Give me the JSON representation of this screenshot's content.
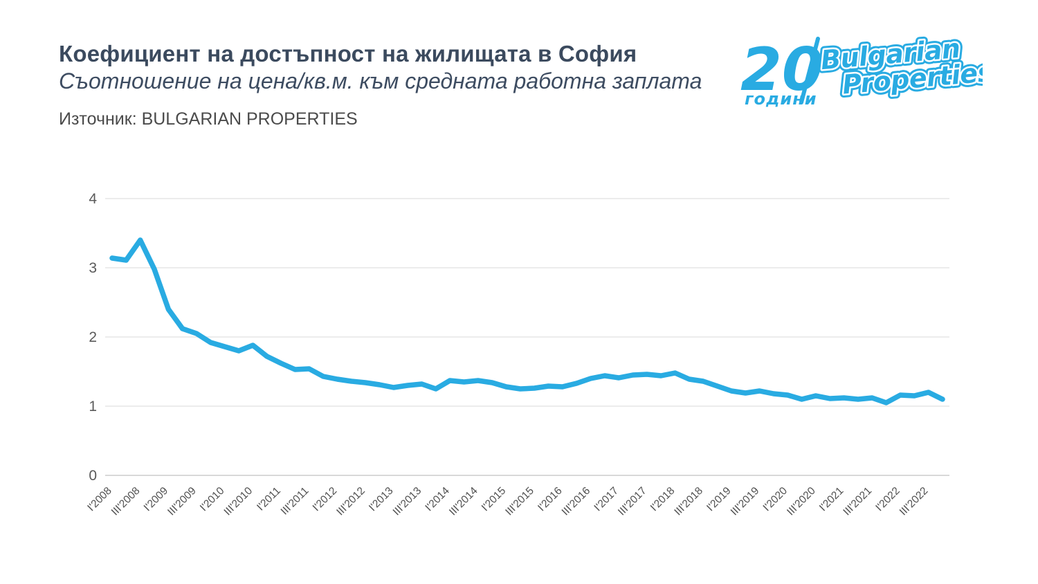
{
  "header": {
    "title": "Коефициент на достъпност на жилищата в София",
    "subtitle": "Съотношение на цена/кв.м. към средната работна заплата",
    "source": "Източник: BULGARIAN PROPERTIES"
  },
  "logo": {
    "number": "20",
    "years_label": "години",
    "brand_line1": "Bulgarian",
    "brand_line2": "Properties"
  },
  "colors": {
    "brand_blue": "#29abe2",
    "title_navy": "#3b4a5e",
    "axis_gray": "#5a5a5a",
    "grid_gray": "#e6e6e6"
  },
  "chart_data": {
    "type": "line",
    "title": "Коефициент на достъпност на жилищата в София",
    "subtitle": "Съотношение на цена/кв.м. към средната работна заплата",
    "source": "Източник: BULGARIAN PROPERTIES",
    "line_color": "#29abe2",
    "grid": true,
    "legend": false,
    "ylim": [
      0,
      4
    ],
    "y_ticks": [
      0,
      1,
      2,
      3,
      4
    ],
    "x_tick_labels": [
      "I'2008",
      "III'2008",
      "I'2009",
      "III'2009",
      "I'2010",
      "III'2010",
      "I'2011",
      "III'2011",
      "I'2012",
      "III'2012",
      "I'2013",
      "III'2013",
      "I'2014",
      "III'2014",
      "I'2015",
      "III'2015",
      "I'2016",
      "III'2016",
      "I'2017",
      "III'2017",
      "I'2018",
      "III'2018",
      "I'2019",
      "III'2019",
      "I'2020",
      "III'2020",
      "I'2021",
      "III'2021",
      "I'2022",
      "III'2022"
    ],
    "x": [
      "I'2008",
      "II'2008",
      "III'2008",
      "IV'2008",
      "I'2009",
      "II'2009",
      "III'2009",
      "IV'2009",
      "I'2010",
      "II'2010",
      "III'2010",
      "IV'2010",
      "I'2011",
      "II'2011",
      "III'2011",
      "IV'2011",
      "I'2012",
      "II'2012",
      "III'2012",
      "IV'2012",
      "I'2013",
      "II'2013",
      "III'2013",
      "IV'2013",
      "I'2014",
      "II'2014",
      "III'2014",
      "IV'2014",
      "I'2015",
      "II'2015",
      "III'2015",
      "IV'2015",
      "I'2016",
      "II'2016",
      "III'2016",
      "IV'2016",
      "I'2017",
      "II'2017",
      "III'2017",
      "IV'2017",
      "I'2018",
      "II'2018",
      "III'2018",
      "IV'2018",
      "I'2019",
      "II'2019",
      "III'2019",
      "IV'2019",
      "I'2020",
      "II'2020",
      "III'2020",
      "IV'2020",
      "I'2021",
      "II'2021",
      "III'2021",
      "IV'2021",
      "I'2022",
      "II'2022",
      "III'2022",
      "IV'2022"
    ],
    "values": [
      3.14,
      3.11,
      3.4,
      2.98,
      2.4,
      2.12,
      2.05,
      1.92,
      1.86,
      1.8,
      1.88,
      1.72,
      1.62,
      1.53,
      1.54,
      1.43,
      1.39,
      1.36,
      1.34,
      1.31,
      1.27,
      1.3,
      1.32,
      1.25,
      1.37,
      1.35,
      1.37,
      1.34,
      1.28,
      1.25,
      1.26,
      1.29,
      1.28,
      1.33,
      1.4,
      1.44,
      1.41,
      1.45,
      1.46,
      1.44,
      1.48,
      1.39,
      1.36,
      1.29,
      1.22,
      1.19,
      1.22,
      1.18,
      1.16,
      1.1,
      1.15,
      1.11,
      1.12,
      1.1,
      1.12,
      1.05,
      1.16,
      1.15,
      1.2,
      1.1
    ]
  }
}
